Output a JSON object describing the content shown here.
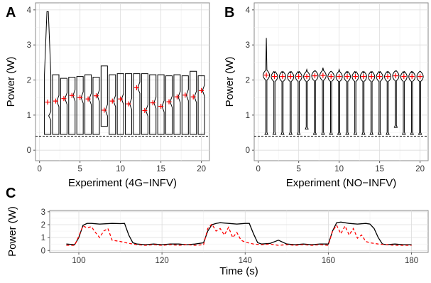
{
  "chart_data": [
    {
      "panel": "A",
      "type": "boxplot",
      "xlabel": "Experiment (4G−INFV)",
      "ylabel": "Power (W)",
      "xlim": [
        -0.5,
        21
      ],
      "ylim": [
        -0.3,
        4.2
      ],
      "xticks": [
        0,
        5,
        10,
        15,
        20
      ],
      "yticks": [
        0,
        1,
        2,
        3,
        4
      ],
      "hline": 0.4,
      "mean_color": "#ff0000",
      "boxes": [
        {
          "x": 1,
          "lo": 0.45,
          "hi": 3.95,
          "spike": true,
          "mean": 1.37
        },
        {
          "x": 2,
          "lo": 0.45,
          "hi": 2.15,
          "mean": 1.4
        },
        {
          "x": 3,
          "lo": 0.45,
          "hi": 2.05,
          "mean": 1.47
        },
        {
          "x": 4,
          "lo": 0.45,
          "hi": 2.08,
          "mean": 1.56
        },
        {
          "x": 5,
          "lo": 0.45,
          "hi": 2.1,
          "mean": 1.5
        },
        {
          "x": 6,
          "lo": 0.45,
          "hi": 2.15,
          "mean": 1.46
        },
        {
          "x": 7,
          "lo": 0.45,
          "hi": 2.08,
          "mean": 1.55
        },
        {
          "x": 8,
          "lo": 0.68,
          "hi": 2.4,
          "mean": 1.14
        },
        {
          "x": 9,
          "lo": 0.45,
          "hi": 2.15,
          "mean": 1.4
        },
        {
          "x": 10,
          "lo": 0.45,
          "hi": 2.18,
          "mean": 1.46
        },
        {
          "x": 11,
          "lo": 0.45,
          "hi": 2.18,
          "mean": 1.32
        },
        {
          "x": 12,
          "lo": 0.45,
          "hi": 2.18,
          "mean": 1.78
        },
        {
          "x": 13,
          "lo": 0.45,
          "hi": 2.18,
          "mean": 1.13
        },
        {
          "x": 14,
          "lo": 0.45,
          "hi": 2.15,
          "mean": 1.35
        },
        {
          "x": 15,
          "lo": 0.45,
          "hi": 2.15,
          "mean": 1.25
        },
        {
          "x": 16,
          "lo": 0.45,
          "hi": 2.12,
          "mean": 1.38
        },
        {
          "x": 17,
          "lo": 0.45,
          "hi": 2.15,
          "mean": 1.52
        },
        {
          "x": 18,
          "lo": 0.45,
          "hi": 2.12,
          "mean": 1.57
        },
        {
          "x": 19,
          "lo": 0.45,
          "hi": 2.25,
          "mean": 1.52
        },
        {
          "x": 20,
          "lo": 0.45,
          "hi": 2.12,
          "mean": 1.7
        }
      ]
    },
    {
      "panel": "B",
      "type": "violin",
      "xlabel": "Experiment (NO−INFV)",
      "ylabel": "Power (W)",
      "xlim": [
        -0.5,
        21
      ],
      "ylim": [
        -0.3,
        4.2
      ],
      "xticks": [
        0,
        5,
        10,
        15,
        20
      ],
      "yticks": [
        0,
        1,
        2,
        3,
        4
      ],
      "hline": 0.4,
      "mean_color": "#ff0000",
      "violins": [
        {
          "x": 1,
          "lo": 0.45,
          "hi": 3.2,
          "mean": 2.14
        },
        {
          "x": 2,
          "lo": 0.45,
          "hi": 2.2,
          "mean": 2.1
        },
        {
          "x": 3,
          "lo": 0.45,
          "hi": 2.2,
          "mean": 2.1
        },
        {
          "x": 4,
          "lo": 0.45,
          "hi": 2.2,
          "mean": 2.1
        },
        {
          "x": 5,
          "lo": 0.45,
          "hi": 2.2,
          "mean": 2.1
        },
        {
          "x": 6,
          "lo": 0.6,
          "hi": 2.3,
          "mean": 2.1
        },
        {
          "x": 7,
          "lo": 0.45,
          "hi": 2.25,
          "mean": 2.12
        },
        {
          "x": 8,
          "lo": 0.45,
          "hi": 2.35,
          "mean": 2.13
        },
        {
          "x": 9,
          "lo": 0.45,
          "hi": 2.25,
          "mean": 2.1
        },
        {
          "x": 10,
          "lo": 0.45,
          "hi": 2.3,
          "mean": 2.1
        },
        {
          "x": 11,
          "lo": 0.45,
          "hi": 2.2,
          "mean": 2.1
        },
        {
          "x": 12,
          "lo": 0.45,
          "hi": 2.2,
          "mean": 2.1
        },
        {
          "x": 13,
          "lo": 0.45,
          "hi": 2.2,
          "mean": 2.1
        },
        {
          "x": 14,
          "lo": 0.45,
          "hi": 2.2,
          "mean": 2.1
        },
        {
          "x": 15,
          "lo": 0.45,
          "hi": 2.2,
          "mean": 2.1
        },
        {
          "x": 16,
          "lo": 0.45,
          "hi": 2.2,
          "mean": 2.1
        },
        {
          "x": 17,
          "lo": 0.65,
          "hi": 2.25,
          "mean": 2.12
        },
        {
          "x": 18,
          "lo": 0.45,
          "hi": 2.2,
          "mean": 2.1
        },
        {
          "x": 19,
          "lo": 0.45,
          "hi": 2.2,
          "mean": 2.1
        },
        {
          "x": 20,
          "lo": 0.45,
          "hi": 2.25,
          "mean": 2.1
        }
      ]
    },
    {
      "panel": "C",
      "type": "line",
      "xlabel": "Time (s)",
      "ylabel": "Power (W)",
      "xlim": [
        93,
        184
      ],
      "ylim": [
        -0.15,
        3.1
      ],
      "xticks": [
        100,
        120,
        140,
        160,
        180
      ],
      "yticks": [
        0,
        1,
        2,
        3
      ],
      "series": [
        {
          "style": "solid",
          "color": "#000000",
          "x": [
            97,
            99,
            100,
            101,
            102,
            103,
            105,
            108,
            110,
            111,
            112,
            113,
            114,
            116,
            118,
            120,
            122,
            124,
            126,
            128,
            130,
            131,
            132,
            133,
            134,
            136,
            138,
            140,
            141,
            142,
            143,
            144,
            146,
            148,
            150,
            152,
            154,
            156,
            158,
            160,
            161,
            162,
            163,
            165,
            167,
            169,
            170,
            171,
            172,
            173,
            174,
            176,
            178,
            180
          ],
          "y": [
            0.5,
            0.45,
            1.0,
            1.95,
            2.1,
            2.1,
            2.05,
            2.1,
            2.08,
            2.1,
            1.2,
            0.6,
            0.5,
            0.45,
            0.5,
            0.45,
            0.5,
            0.5,
            0.45,
            0.5,
            0.6,
            1.5,
            2.0,
            2.1,
            2.15,
            2.1,
            2.05,
            2.1,
            2.1,
            1.3,
            0.6,
            0.5,
            0.55,
            0.8,
            0.5,
            0.45,
            0.5,
            0.45,
            0.5,
            0.5,
            1.5,
            2.15,
            2.2,
            2.1,
            2.05,
            2.1,
            2.05,
            1.7,
            1.0,
            0.5,
            0.45,
            0.5,
            0.45,
            0.45
          ]
        },
        {
          "style": "dashed",
          "color": "#ff0000",
          "x": [
            97,
            99,
            100,
            101,
            102,
            103,
            104,
            105,
            106,
            107,
            108,
            109,
            110,
            112,
            114,
            116,
            118,
            120,
            122,
            124,
            126,
            128,
            130,
            131,
            132,
            133,
            134,
            135,
            136,
            137,
            138,
            139,
            140,
            142,
            144,
            146,
            148,
            150,
            152,
            154,
            156,
            158,
            160,
            161,
            162,
            163,
            164,
            165,
            166,
            167,
            168,
            169,
            170,
            172,
            174,
            176,
            178,
            180
          ],
          "y": [
            0.4,
            0.4,
            1.1,
            1.9,
            1.75,
            1.85,
            1.4,
            1.0,
            1.5,
            1.7,
            0.8,
            0.75,
            0.7,
            0.55,
            0.45,
            0.4,
            0.45,
            0.4,
            0.45,
            0.4,
            0.45,
            0.4,
            0.45,
            1.7,
            2.05,
            1.5,
            1.7,
            1.2,
            1.8,
            1.0,
            1.4,
            0.8,
            0.65,
            0.5,
            0.45,
            0.5,
            0.4,
            0.45,
            0.4,
            0.45,
            0.4,
            0.45,
            0.4,
            1.5,
            1.95,
            1.3,
            1.9,
            1.2,
            1.7,
            0.95,
            1.2,
            0.7,
            0.6,
            0.5,
            0.45,
            0.4,
            0.4,
            0.4
          ]
        }
      ]
    }
  ]
}
